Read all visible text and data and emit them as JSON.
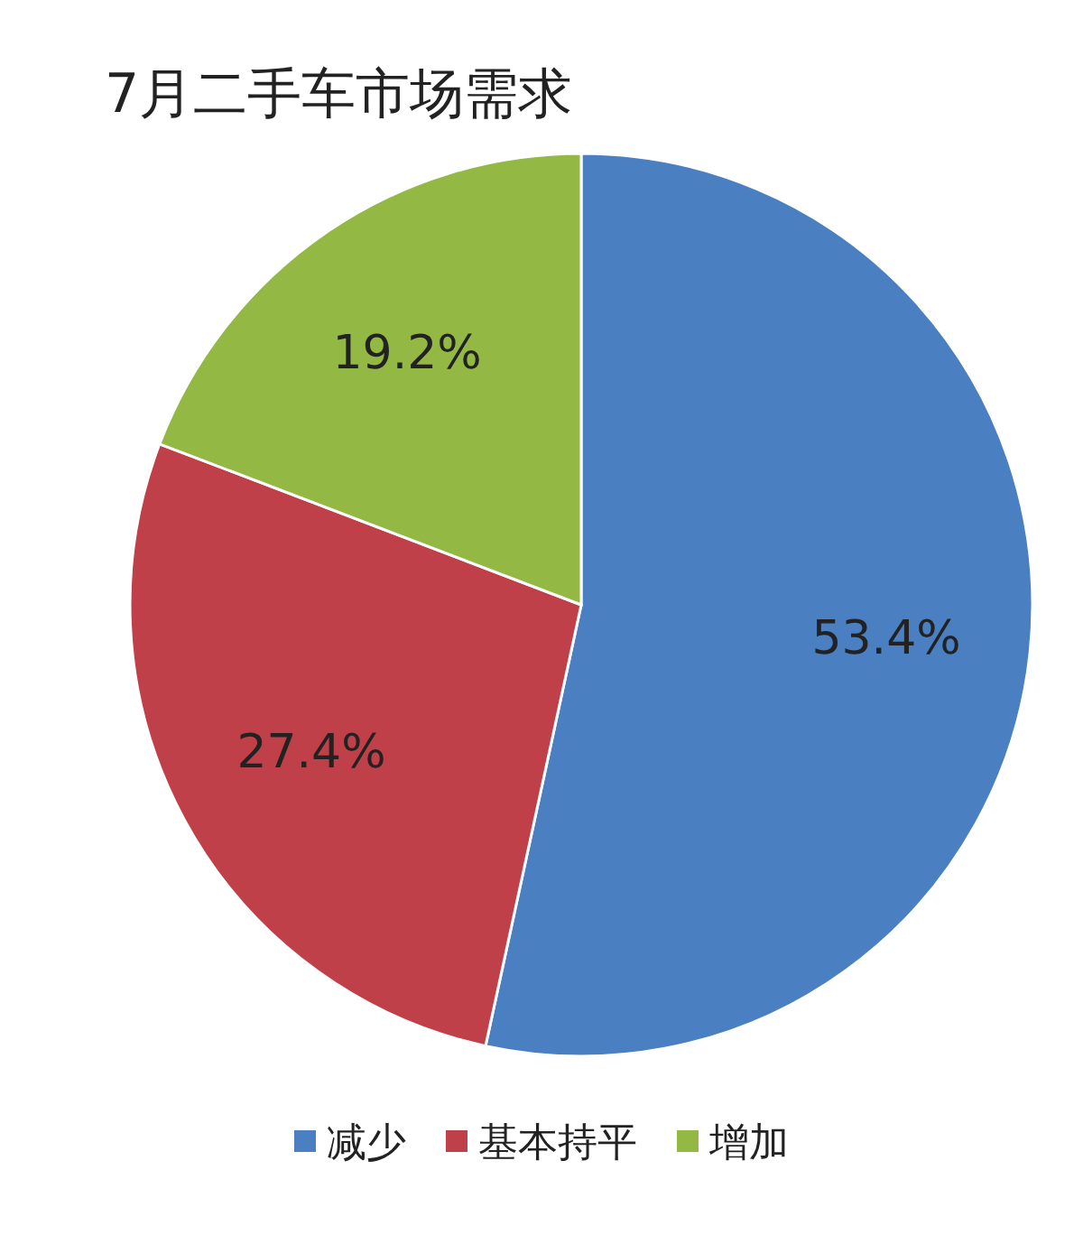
{
  "chart_data": {
    "type": "pie",
    "title": "7月二手车市场需求",
    "categories": [
      "减少",
      "基本持平",
      "增加"
    ],
    "values": [
      53.4,
      27.4,
      19.2
    ],
    "colors": [
      "#4a7fc1",
      "#c0404a",
      "#93b944"
    ],
    "value_labels": [
      "53.4%",
      "27.4%",
      "19.2%"
    ],
    "legend": "bottom"
  }
}
